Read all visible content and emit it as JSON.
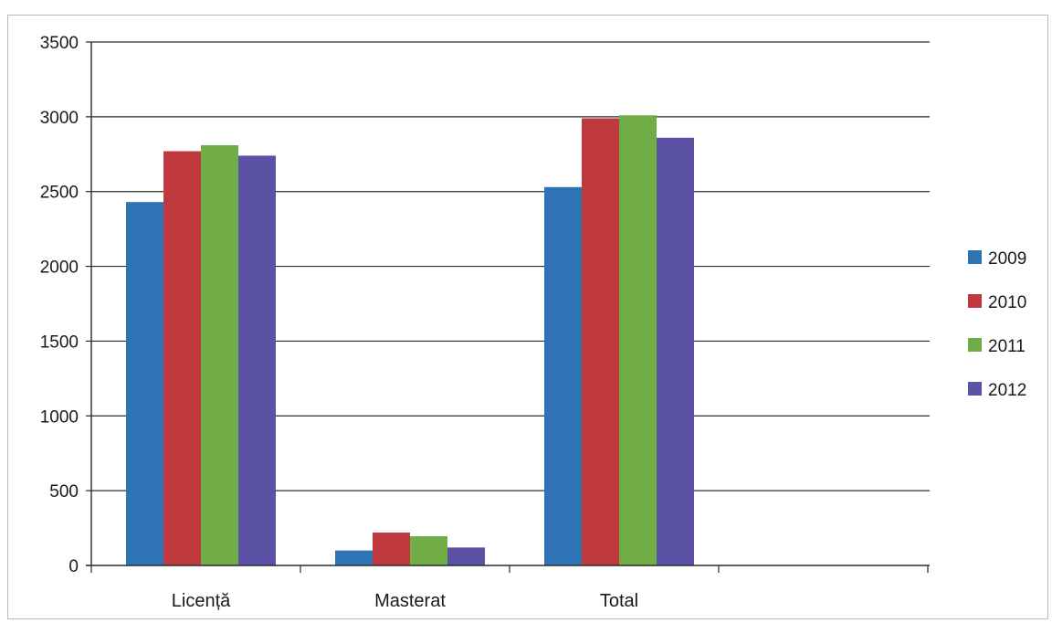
{
  "chart_data": {
    "type": "bar",
    "title": "",
    "xlabel": "",
    "ylabel": "",
    "categories": [
      "Licență",
      "Masterat",
      "Total"
    ],
    "series": [
      {
        "name": "2009",
        "values": [
          2430,
          100,
          2530
        ],
        "color": "#2e74b5"
      },
      {
        "name": "2010",
        "values": [
          2770,
          220,
          2990
        ],
        "color": "#c0393f"
      },
      {
        "name": "2011",
        "values": [
          2810,
          195,
          3010
        ],
        "color": "#70ad47"
      },
      {
        "name": "2012",
        "values": [
          2740,
          120,
          2860
        ],
        "color": "#5b52a6"
      }
    ],
    "ylim": [
      0,
      3500
    ],
    "yticks": [
      "0",
      "500",
      "1000",
      "1500",
      "2000",
      "2500",
      "3000",
      "3500"
    ],
    "grid": true,
    "legend": "right"
  }
}
